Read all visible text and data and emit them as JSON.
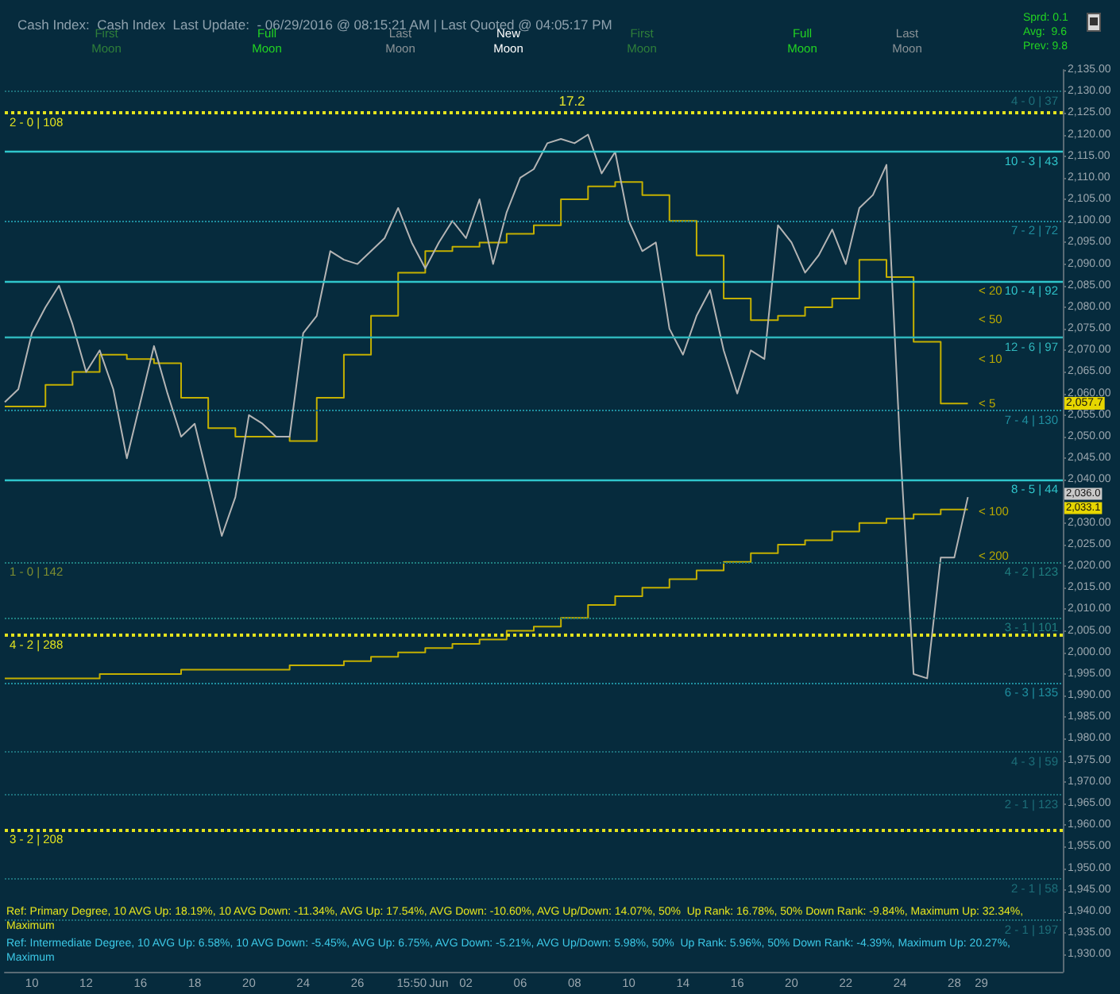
{
  "chart_data": {
    "type": "line",
    "title": "Cash Index:  Cash Index  Last Update:  - 06/29/2016 @ 08:15:21 AM | Last Quoted @ 04:05:17 PM",
    "categories": [
      null,
      null,
      "10",
      null,
      null,
      null,
      "12",
      null,
      null,
      null,
      "16",
      null,
      null,
      null,
      "18",
      null,
      null,
      null,
      "20",
      null,
      null,
      null,
      "24",
      null,
      null,
      null,
      "26",
      null,
      null,
      null,
      "15:50",
      null,
      "Jun",
      null,
      "02",
      null,
      null,
      null,
      "06",
      null,
      null,
      null,
      "08",
      null,
      null,
      null,
      "10",
      null,
      null,
      null,
      "14",
      null,
      null,
      null,
      "16",
      null,
      null,
      null,
      "20",
      null,
      null,
      null,
      "22",
      null,
      null,
      null,
      "24",
      null,
      null,
      null,
      "28",
      null,
      "29",
      null,
      null,
      null,
      null,
      null,
      null
    ],
    "series": [
      {
        "color": "#b4b4b4",
        "values": [
          2058,
          2061,
          2074,
          2080,
          2085,
          2076,
          2065,
          2070,
          2061,
          2045,
          2058,
          2071,
          2060,
          2050,
          2053,
          2040,
          2027,
          2036,
          2055,
          2053,
          2050,
          2050,
          2074,
          2078,
          2093,
          2091,
          2090,
          2093,
          2096,
          2103,
          2095,
          2089,
          2095,
          2100,
          2096,
          2105,
          2090,
          2102,
          2110,
          2112,
          2118,
          2119,
          2118,
          2120,
          2111,
          2116,
          2100,
          2093,
          2095,
          2075,
          2069,
          2078,
          2084,
          2070,
          2060,
          2070,
          2068,
          2099,
          2095,
          2088,
          2092,
          2098,
          2090,
          2103,
          2106,
          2113,
          2048,
          1995,
          1994,
          2022,
          2022,
          2036,
          null,
          null,
          null,
          null,
          null,
          null,
          null
        ]
      },
      {
        "type": "step",
        "color": "#c4b000",
        "values": [
          2057,
          2057,
          2057,
          2057,
          2062,
          2062,
          2065,
          2065,
          2069,
          2069,
          2068,
          2068,
          2067,
          2067,
          2059,
          2059,
          2052,
          2052,
          2050,
          2050,
          2050,
          2050,
          2049,
          2049,
          2059,
          2059,
          2069,
          2069,
          2078,
          2078,
          2088,
          2088,
          2093,
          2093,
          2094,
          2094,
          2095,
          2095,
          2097,
          2097,
          2099,
          2099,
          2105,
          2105,
          2108,
          2108,
          2109,
          2109,
          2106,
          2106,
          2100,
          2100,
          2092,
          2092,
          2082,
          2082,
          2077,
          2077,
          2078,
          2078,
          2080,
          2080,
          2082,
          2082,
          2091,
          2091,
          2087,
          2087,
          2072,
          2072,
          2057.7,
          2057.7,
          null,
          null,
          null,
          null,
          null,
          null,
          null
        ]
      },
      {
        "type": "step",
        "color": "#c4b000",
        "values": [
          1994,
          1994,
          1994,
          1994,
          1994,
          1994,
          1994,
          1994,
          1995,
          1995,
          1995,
          1995,
          1995,
          1995,
          1996,
          1996,
          1996,
          1996,
          1996,
          1996,
          1996,
          1996,
          1997,
          1997,
          1997,
          1997,
          1998,
          1998,
          1999,
          1999,
          2000,
          2000,
          2001,
          2001,
          2002,
          2002,
          2003,
          2003,
          2005,
          2005,
          2006,
          2006,
          2008,
          2008,
          2011,
          2011,
          2013,
          2013,
          2015,
          2015,
          2017,
          2017,
          2019,
          2019,
          2021,
          2021,
          2023,
          2023,
          2025,
          2025,
          2026,
          2026,
          2028,
          2028,
          2030,
          2030,
          2031,
          2031,
          2032,
          2032,
          2033.1,
          2033.1,
          null,
          null,
          null,
          null,
          null,
          null,
          null
        ]
      }
    ],
    "ylim": [
      1926,
      2135
    ],
    "yticks": [
      {
        "value": 1930,
        "label": "1,930.00"
      },
      {
        "value": 1935,
        "label": "1,935.00"
      },
      {
        "value": 1940,
        "label": "1,940.00"
      },
      {
        "value": 1945,
        "label": "1,945.00"
      },
      {
        "value": 1950,
        "label": "1,950.00"
      },
      {
        "value": 1955,
        "label": "1,955.00"
      },
      {
        "value": 1960,
        "label": "1,960.00"
      },
      {
        "value": 1965,
        "label": "1,965.00"
      },
      {
        "value": 1970,
        "label": "1,970.00"
      },
      {
        "value": 1975,
        "label": "1,975.00"
      },
      {
        "value": 1980,
        "label": "1,980.00"
      },
      {
        "value": 1985,
        "label": "1,985.00"
      },
      {
        "value": 1990,
        "label": "1,990.00"
      },
      {
        "value": 1995,
        "label": "1,995.00"
      },
      {
        "value": 2000,
        "label": "2,000.00"
      },
      {
        "value": 2005,
        "label": "2,005.00"
      },
      {
        "value": 2010,
        "label": "2,010.00"
      },
      {
        "value": 2015,
        "label": "2,015.00"
      },
      {
        "value": 2020,
        "label": "2,020.00"
      },
      {
        "value": 2025,
        "label": "2,025.00"
      },
      {
        "value": 2030,
        "label": "2,030.00"
      },
      {
        "value": 2035,
        "label": null
      },
      {
        "value": 2040,
        "label": "2,040.00"
      },
      {
        "value": 2045,
        "label": "2,045.00"
      },
      {
        "value": 2050,
        "label": "2,050.00"
      },
      {
        "value": 2055,
        "label": "2,055.00"
      },
      {
        "value": 2060,
        "label": "2,060.00"
      },
      {
        "value": 2065,
        "label": "2,065.00"
      },
      {
        "value": 2070,
        "label": "2,070.00"
      },
      {
        "value": 2075,
        "label": "2,075.00"
      },
      {
        "value": 2080,
        "label": "2,080.00"
      },
      {
        "value": 2085,
        "label": "2,085.00"
      },
      {
        "value": 2090,
        "label": "2,090.00"
      },
      {
        "value": 2095,
        "label": "2,095.00"
      },
      {
        "value": 2100,
        "label": "2,100.00"
      },
      {
        "value": 2105,
        "label": "2,105.00"
      },
      {
        "value": 2110,
        "label": "2,110.00"
      },
      {
        "value": 2115,
        "label": "2,115.00"
      },
      {
        "value": 2120,
        "label": "2,120.00"
      },
      {
        "value": 2125,
        "label": "2,125.00"
      },
      {
        "value": 2130,
        "label": "2,130.00"
      },
      {
        "value": 2135,
        "label": "2,135.00"
      }
    ],
    "ref_lines": [
      {
        "axis": "y",
        "value": 2130,
        "color": "#1d6f7a",
        "line_style": "dotted"
      },
      {
        "axis": "y",
        "value": 2125,
        "color": "#e3e31e",
        "line_style": "dotted"
      },
      {
        "axis": "y",
        "value": 2116,
        "color": "#2fc6cc",
        "line_style": "solid"
      },
      {
        "axis": "y",
        "value": 2100,
        "color": "#1f8fa0",
        "line_style": "dotted"
      },
      {
        "axis": "y",
        "value": 2086,
        "color": "#2fc6cc",
        "line_style": "solid"
      },
      {
        "axis": "y",
        "value": 2073,
        "color": "#2fb6bc",
        "line_style": "solid"
      },
      {
        "axis": "y",
        "value": 2056,
        "color": "#1f8fa0",
        "line_style": "dotted"
      },
      {
        "axis": "y",
        "value": 2040,
        "color": "#2fc6cc",
        "line_style": "solid"
      },
      {
        "axis": "y",
        "value": 2021,
        "color": "#1f7f80",
        "line_style": "dotted"
      },
      {
        "axis": "y",
        "value": 2008,
        "color": "#1f7f80",
        "line_style": "dotted"
      },
      {
        "axis": "y",
        "value": 2004,
        "color": "#e3e31e",
        "line_style": "dotted"
      },
      {
        "axis": "y",
        "value": 1993,
        "color": "#1f8fa0",
        "line_style": "dotted"
      },
      {
        "axis": "y",
        "value": 1977,
        "color": "#1d6f7a",
        "line_style": "dotted"
      },
      {
        "axis": "y",
        "value": 1967,
        "color": "#1d6f7a",
        "line_style": "dotted"
      },
      {
        "axis": "y",
        "value": 1959,
        "color": "#e3e31e",
        "line_style": "dotted"
      },
      {
        "axis": "y",
        "value": 1947.5,
        "color": "#1d6f7a",
        "line_style": "dotted"
      },
      {
        "axis": "y",
        "value": 1938,
        "color": "#1d6f7a",
        "line_style": "dotted"
      }
    ],
    "annotations": [
      "17.2",
      "First Moon",
      "Full Moon",
      "Last Moon",
      "New Moon",
      "First Moon",
      "Full Moon",
      "Last Moon",
      "Sprd: 0.1",
      "Avg:  9.6",
      "Prev: 9.8",
      "< 20",
      "< 50",
      "< 10",
      "< 5",
      "< 100",
      "< 200",
      "2,057.7",
      "2,036.0",
      "2,033.1",
      "Ref: Primary Degree, 10 AVG Up: 18.19%, 10 AVG Down: -11.34%, AVG Up: 17.54%, AVG Down: -10.60%, AVG Up/Down: 14.07%, 50%  Up Rank: 16.78%, 50% Down Rank: -9.84%, Maximum Up: 32.34%, Maximum",
      "Ref: Intermediate Degree, 10 AVG Up: 6.58%, 10 AVG Down: -5.45%, AVG Up: 6.75%, AVG Down: -5.21%, AVG Up/Down: 5.98%, 50%  Up Rank: 5.96%, 50% Down Rank: -4.39%, Maximum Up: 20.27%, Maximum",
      {
        "text": "4 - 0 | 37",
        "y": 2130
      },
      {
        "text": "2 - 0 | 108",
        "y": 2125
      },
      {
        "text": "10 - 3 | 43",
        "y": 2116
      },
      {
        "text": "7 - 2 | 72",
        "y": 2100
      },
      {
        "text": "10 - 4 | 92",
        "y": 2086
      },
      {
        "text": "12 - 6 | 97",
        "y": 2073
      },
      {
        "text": "7 - 4 | 130",
        "y": 2056
      },
      {
        "text": "8 - 5 | 44",
        "y": 2040
      },
      {
        "text": "4 - 2 | 123",
        "y": 2021
      },
      {
        "text": "1 - 0 | 142",
        "y": 2021
      },
      {
        "text": "3 - 1 | 101",
        "y": 2008
      },
      {
        "text": "4 - 2 | 288",
        "y": 2004
      },
      {
        "text": "6 - 3 | 135",
        "y": 1993
      },
      {
        "text": "4 - 3 | 59",
        "y": 1977
      },
      {
        "text": "2 - 1 | 123",
        "y": 1967
      },
      {
        "text": "3 - 2 | 208",
        "y": 1959
      },
      {
        "text": "2 - 1 | 58",
        "y": 1947.5
      },
      {
        "text": "2 - 1 | 197",
        "y": 1938
      }
    ]
  }
}
